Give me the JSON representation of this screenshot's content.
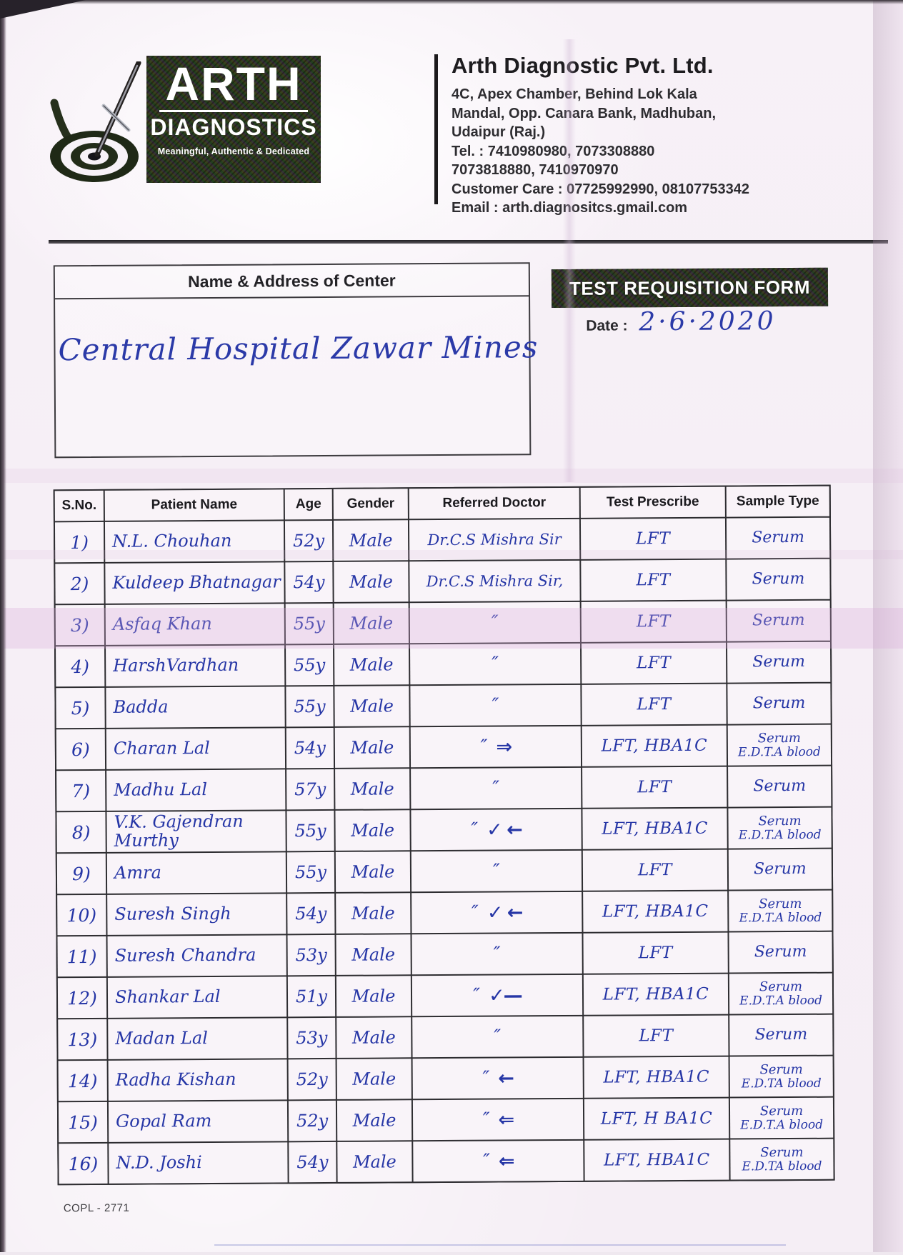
{
  "logo": {
    "brand": "ARTH",
    "sub": "DIAGNOSTICS",
    "tagline": "Meaningful, Authentic & Dedicated"
  },
  "company": {
    "name": "Arth Diagnostic Pvt. Ltd.",
    "lines": [
      "4C, Apex Chamber, Behind Lok Kala",
      "Mandal, Opp. Canara Bank, Madhuban,",
      "Udaipur (Raj.)",
      "Tel. : 7410980980, 7073308880",
      "7073818880, 7410970970",
      "Customer Care : 07725992990, 08107753342",
      "Email : arth.diagnositcs.gmail.com"
    ]
  },
  "form": {
    "center_box_title": "Name & Address of Center",
    "center_name": "Central Hospital Zawar Mines",
    "title": "TEST REQUISITION FORM",
    "date_label": "Date :",
    "date_value": "2·6·2020"
  },
  "table": {
    "headers": [
      "S.No.",
      "Patient Name",
      "Age",
      "Gender",
      "Referred Doctor",
      "Test Prescribe",
      "Sample Type"
    ],
    "rows": [
      {
        "sno": "1)",
        "name": "N.L. Chouhan",
        "age": "52y",
        "gender": "Male",
        "doctor": "Dr.C.S Mishra Sir",
        "mark": "",
        "test": "LFT",
        "sample": "Serum",
        "sample2": ""
      },
      {
        "sno": "2)",
        "name": "Kuldeep Bhatnagar",
        "age": "54y",
        "gender": "Male",
        "doctor": "Dr.C.S Mishra Sir,",
        "mark": "",
        "test": "LFT",
        "sample": "Serum",
        "sample2": ""
      },
      {
        "sno": "3)",
        "name": "Asfaq Khan",
        "age": "55y",
        "gender": "Male",
        "doctor": "″",
        "mark": "",
        "test": "LFT",
        "sample": "Serum",
        "sample2": ""
      },
      {
        "sno": "4)",
        "name": "HarshVardhan",
        "age": "55y",
        "gender": "Male",
        "doctor": "″",
        "mark": "",
        "test": "LFT",
        "sample": "Serum",
        "sample2": ""
      },
      {
        "sno": "5)",
        "name": "Badda",
        "age": "55y",
        "gender": "Male",
        "doctor": "″",
        "mark": "",
        "test": "LFT",
        "sample": "Serum",
        "sample2": ""
      },
      {
        "sno": "6)",
        "name": "Charan Lal",
        "age": "54y",
        "gender": "Male",
        "doctor": "″",
        "mark": "⇒",
        "test": "LFT, HBA1C",
        "sample": "Serum",
        "sample2": "E.D.T.A blood"
      },
      {
        "sno": "7)",
        "name": "Madhu Lal",
        "age": "57y",
        "gender": "Male",
        "doctor": "″",
        "mark": "",
        "test": "LFT",
        "sample": "Serum",
        "sample2": ""
      },
      {
        "sno": "8)",
        "name": "V.K. Gajendran Murthy",
        "age": "55y",
        "gender": "Male",
        "doctor": "″",
        "mark": "✓ ←",
        "test": "LFT, HBA1C",
        "sample": "Serum",
        "sample2": "E.D.T.A blood"
      },
      {
        "sno": "9)",
        "name": "Amra",
        "age": "55y",
        "gender": "Male",
        "doctor": "″",
        "mark": "",
        "test": "LFT",
        "sample": "Serum",
        "sample2": ""
      },
      {
        "sno": "10)",
        "name": "Suresh Singh",
        "age": "54y",
        "gender": "Male",
        "doctor": "″",
        "mark": "✓ ←",
        "test": "LFT, HBA1C",
        "sample": "Serum",
        "sample2": "E.D.T.A blood"
      },
      {
        "sno": "11)",
        "name": "Suresh Chandra",
        "age": "53y",
        "gender": "Male",
        "doctor": "″",
        "mark": "",
        "test": "LFT",
        "sample": "Serum",
        "sample2": ""
      },
      {
        "sno": "12)",
        "name": "Shankar Lal",
        "age": "51y",
        "gender": "Male",
        "doctor": "″",
        "mark": "✓—",
        "test": "LFT, HBA1C",
        "sample": "Serum",
        "sample2": "E.D.T.A blood"
      },
      {
        "sno": "13)",
        "name": "Madan Lal",
        "age": "53y",
        "gender": "Male",
        "doctor": "″",
        "mark": "",
        "test": "LFT",
        "sample": "Serum",
        "sample2": ""
      },
      {
        "sno": "14)",
        "name": "Radha Kishan",
        "age": "52y",
        "gender": "Male",
        "doctor": "″",
        "mark": "←",
        "test": "LFT, HBA1C",
        "sample": "Serum",
        "sample2": "E.D.TA blood"
      },
      {
        "sno": "15)",
        "name": "Gopal Ram",
        "age": "52y",
        "gender": "Male",
        "doctor": "″",
        "mark": "⇐",
        "test": "LFT, H BA1C",
        "sample": "Serum",
        "sample2": "E.D.T.A blood"
      },
      {
        "sno": "16)",
        "name": "N.D. Joshi",
        "age": "54y",
        "gender": "Male",
        "doctor": "″",
        "mark": "⇐",
        "test": "LFT, HBA1C",
        "sample": "Serum",
        "sample2": "E.D.TA blood"
      }
    ]
  },
  "footer": {
    "code": "COPL - 2771"
  }
}
